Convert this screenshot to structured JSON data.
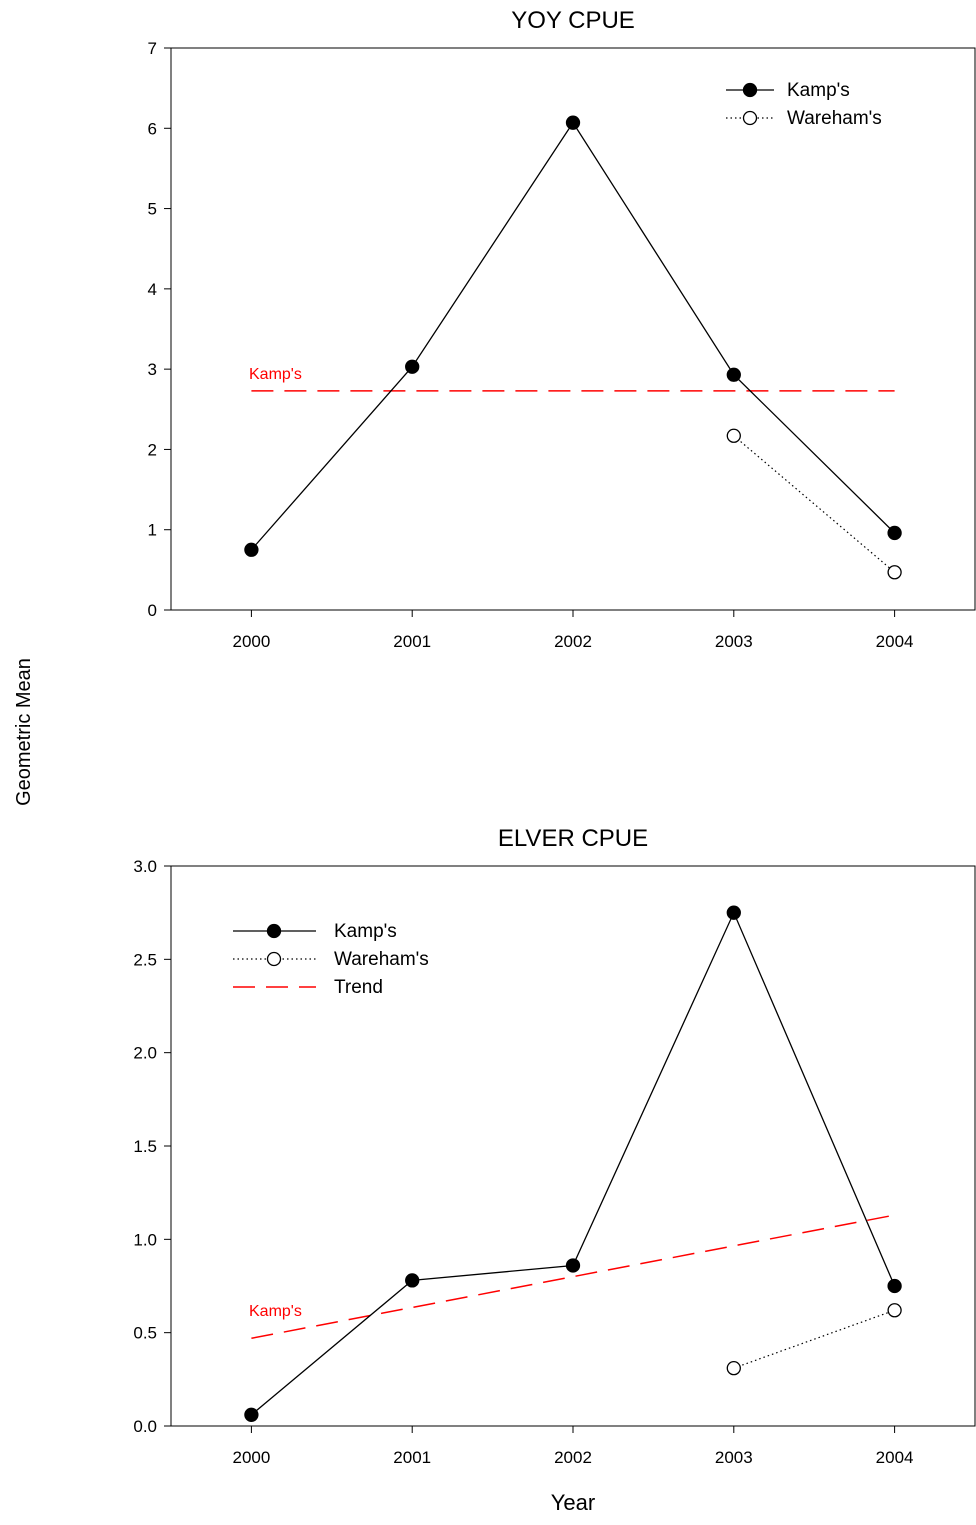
{
  "figure": {
    "shared_ylabel": "Geometric Mean",
    "shared_xlabel": "Year"
  },
  "chart_data": [
    {
      "type": "line",
      "title": "YOY CPUE",
      "xlabel": "Year",
      "ylabel": "Geometric Mean",
      "x": [
        2000,
        2001,
        2002,
        2003,
        2004
      ],
      "xlim": [
        1999.5,
        2004.5
      ],
      "ylim": [
        0,
        7
      ],
      "yticks": [
        0,
        1,
        2,
        3,
        4,
        5,
        6,
        7
      ],
      "ytick_labels": [
        "0",
        "1",
        "2",
        "3",
        "4",
        "5",
        "6",
        "7"
      ],
      "legend_position": "top-right",
      "legend": [
        "Kamp's",
        "Wareham's"
      ],
      "series": [
        {
          "name": "Kamp's",
          "style": "solid",
          "marker": "filled-circle",
          "color": "#000000",
          "x": [
            2000,
            2001,
            2002,
            2003,
            2004
          ],
          "values": [
            0.75,
            3.03,
            6.07,
            2.93,
            0.96
          ]
        },
        {
          "name": "Wareham's",
          "style": "dotted",
          "marker": "open-circle",
          "color": "#000000",
          "x": [
            2003,
            2004
          ],
          "values": [
            2.17,
            0.47
          ]
        }
      ],
      "trend": {
        "label": "Kamp's",
        "color": "#ff0000",
        "style": "dashed",
        "x": [
          2000,
          2004
        ],
        "values": [
          2.73,
          2.73
        ]
      }
    },
    {
      "type": "line",
      "title": "ELVER CPUE",
      "xlabel": "Year",
      "ylabel": "Geometric Mean",
      "x": [
        2000,
        2001,
        2002,
        2003,
        2004
      ],
      "xlim": [
        1999.5,
        2004.5
      ],
      "ylim": [
        0,
        3
      ],
      "yticks": [
        0,
        0.5,
        1.0,
        1.5,
        2.0,
        2.5,
        3.0
      ],
      "ytick_labels": [
        "0.0",
        "0.5",
        "1.0",
        "1.5",
        "2.0",
        "2.5",
        "3.0"
      ],
      "legend_position": "top-left",
      "legend": [
        "Kamp's",
        "Wareham's",
        "Trend"
      ],
      "series": [
        {
          "name": "Kamp's",
          "style": "solid",
          "marker": "filled-circle",
          "color": "#000000",
          "x": [
            2000,
            2001,
            2002,
            2003,
            2004
          ],
          "values": [
            0.06,
            0.78,
            0.86,
            2.75,
            0.75
          ]
        },
        {
          "name": "Wareham's",
          "style": "dotted",
          "marker": "open-circle",
          "color": "#000000",
          "x": [
            2003,
            2004
          ],
          "values": [
            0.31,
            0.62
          ]
        }
      ],
      "trend": {
        "label": "Kamp's",
        "color": "#ff0000",
        "style": "dashed",
        "x": [
          2000,
          2004
        ],
        "values": [
          0.47,
          1.13
        ]
      }
    }
  ]
}
